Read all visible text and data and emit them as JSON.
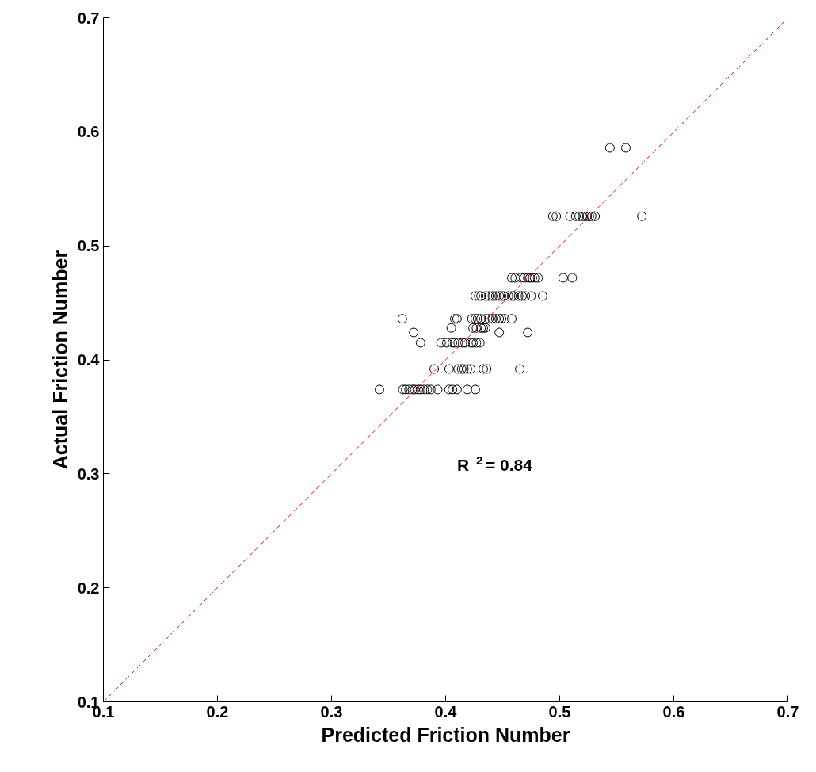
{
  "chart_data": {
    "type": "scatter",
    "xlabel": "Predicted Friction Number",
    "ylabel": "Actual Friction Number",
    "xlim": [
      0.1,
      0.7
    ],
    "ylim": [
      0.1,
      0.7
    ],
    "xticks": [
      0.1,
      0.2,
      0.3,
      0.4,
      0.5,
      0.6,
      0.7
    ],
    "yticks": [
      0.1,
      0.2,
      0.3,
      0.4,
      0.5,
      0.6,
      0.7
    ],
    "grid": false,
    "annotations": [
      "R$^{2}$ = 0.84"
    ],
    "series": [
      {
        "color": "#000000",
        "marker": "circle",
        "x": [
          0.544,
          0.558,
          0.494,
          0.497,
          0.509,
          0.514,
          0.517,
          0.52,
          0.522,
          0.524,
          0.526,
          0.528,
          0.531,
          0.572,
          0.458,
          0.461,
          0.466,
          0.469,
          0.472,
          0.474,
          0.476,
          0.478,
          0.481,
          0.503,
          0.511,
          0.426,
          0.429,
          0.431,
          0.435,
          0.438,
          0.441,
          0.444,
          0.447,
          0.449,
          0.451,
          0.455,
          0.458,
          0.46,
          0.464,
          0.467,
          0.47,
          0.475,
          0.485,
          0.362,
          0.408,
          0.41,
          0.423,
          0.426,
          0.428,
          0.431,
          0.435,
          0.438,
          0.441,
          0.444,
          0.447,
          0.449,
          0.452,
          0.458,
          0.405,
          0.424,
          0.427,
          0.431,
          0.433,
          0.435,
          0.372,
          0.447,
          0.472,
          0.378,
          0.396,
          0.401,
          0.406,
          0.408,
          0.411,
          0.415,
          0.417,
          0.422,
          0.424,
          0.427,
          0.43,
          0.39,
          0.403,
          0.411,
          0.414,
          0.416,
          0.419,
          0.422,
          0.433,
          0.436,
          0.465,
          0.342,
          0.3625,
          0.365,
          0.368,
          0.371,
          0.373,
          0.376,
          0.378,
          0.381,
          0.384,
          0.387,
          0.393,
          0.403,
          0.406,
          0.41,
          0.419,
          0.426
        ],
        "values": [
          0.586,
          0.586,
          0.526,
          0.526,
          0.526,
          0.526,
          0.526,
          0.526,
          0.526,
          0.526,
          0.526,
          0.526,
          0.526,
          0.526,
          0.472,
          0.472,
          0.472,
          0.472,
          0.472,
          0.472,
          0.472,
          0.472,
          0.472,
          0.472,
          0.472,
          0.456,
          0.456,
          0.456,
          0.456,
          0.456,
          0.456,
          0.456,
          0.456,
          0.456,
          0.456,
          0.456,
          0.456,
          0.456,
          0.456,
          0.456,
          0.456,
          0.456,
          0.456,
          0.436,
          0.436,
          0.436,
          0.436,
          0.436,
          0.436,
          0.436,
          0.436,
          0.436,
          0.436,
          0.436,
          0.436,
          0.436,
          0.436,
          0.436,
          0.428,
          0.428,
          0.428,
          0.428,
          0.428,
          0.428,
          0.424,
          0.424,
          0.424,
          0.415,
          0.415,
          0.415,
          0.415,
          0.415,
          0.415,
          0.415,
          0.415,
          0.415,
          0.415,
          0.415,
          0.415,
          0.392,
          0.392,
          0.392,
          0.392,
          0.392,
          0.392,
          0.392,
          0.392,
          0.392,
          0.392,
          0.374,
          0.374,
          0.374,
          0.374,
          0.374,
          0.374,
          0.374,
          0.374,
          0.374,
          0.374,
          0.374,
          0.374,
          0.374,
          0.374,
          0.374,
          0.374,
          0.374
        ]
      },
      {
        "type": "line",
        "color": "#ff0000",
        "line_style": "dashed",
        "x": [
          0.1,
          0.7
        ],
        "values": [
          0.1,
          0.7
        ]
      }
    ]
  }
}
